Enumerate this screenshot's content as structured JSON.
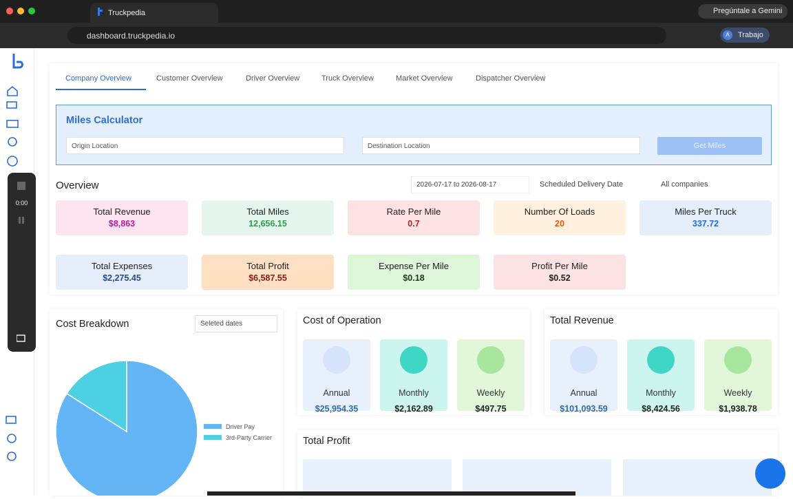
{
  "browser": {
    "tab_title": "Truckpedia",
    "url": "dashboard.truckpedia.io",
    "assistant": "Pregúntale a Gemini",
    "avatar": "A",
    "profile": "Trabajo"
  },
  "recorder": {
    "time": "0:00"
  },
  "tabs": [
    "Company Overview",
    "Customer Overview",
    "Driver Overview",
    "Truck Overview",
    "Market Overview",
    "Dispatcher Overview"
  ],
  "miles_calculator": {
    "title": "Miles Calculator",
    "origin": "Origin Location",
    "destination": "Destination Location",
    "button": "Get Miles"
  },
  "overview": {
    "title": "Overview",
    "date_range": "2026-07-17 to 2026-08-17",
    "date_filter": "Scheduled Delivery Date",
    "company_filter": "All companies",
    "kpis": [
      {
        "label": "Total Revenue",
        "value": "$8,863"
      },
      {
        "label": "Total Miles",
        "value": "12,656.15"
      },
      {
        "label": "Rate Per Mile",
        "value": "0.7"
      },
      {
        "label": "Number Of Loads",
        "value": "20"
      },
      {
        "label": "Miles Per Truck",
        "value": "337.72"
      },
      {
        "label": "Total Expenses",
        "value": "$2,275.45"
      },
      {
        "label": "Total Profit",
        "value": "$6,587.55"
      },
      {
        "label": "Expense Per Mile",
        "value": "$0.18"
      },
      {
        "label": "Profit Per Mile",
        "value": "$0.52"
      }
    ]
  },
  "cost_breakdown": {
    "title": "Cost Breakdown",
    "filter": "Seleted dates",
    "chart_data": {
      "type": "pie",
      "categories": [
        "Driver Pay",
        "3rd-Party Carrier"
      ],
      "values": [
        84,
        16
      ],
      "colors": [
        "#64b5f6",
        "#4dd0e1"
      ]
    }
  },
  "cost_of_operation": {
    "title": "Cost of Operation",
    "cards": [
      {
        "label": "Annual",
        "value": "$25,954.35"
      },
      {
        "label": "Monthly",
        "value": "$2,162.89"
      },
      {
        "label": "Weekly",
        "value": "$497.75"
      }
    ]
  },
  "total_revenue": {
    "title": "Total Revenue",
    "cards": [
      {
        "label": "Annual",
        "value": "$101,093.59"
      },
      {
        "label": "Monthly",
        "value": "$8,424.56"
      },
      {
        "label": "Weekly",
        "value": "$1,938.78"
      }
    ]
  },
  "total_profit": {
    "title": "Total Profit"
  }
}
